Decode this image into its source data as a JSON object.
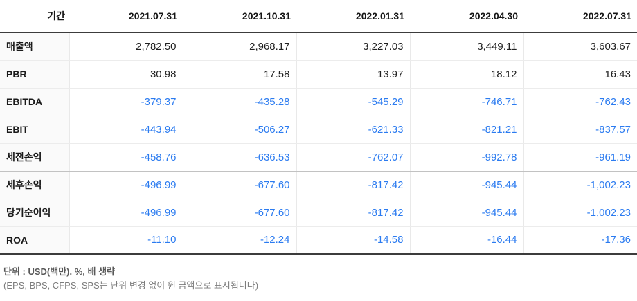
{
  "table": {
    "header": {
      "period_label": "기간",
      "dates": [
        "2021.07.31",
        "2021.10.31",
        "2022.01.31",
        "2022.04.30",
        "2022.07.31"
      ]
    },
    "rows": [
      {
        "label": "매출액",
        "values": [
          "2,782.50",
          "2,968.17",
          "3,227.03",
          "3,449.11",
          "3,603.67"
        ]
      },
      {
        "label": "PBR",
        "values": [
          "30.98",
          "17.58",
          "13.97",
          "18.12",
          "16.43"
        ]
      },
      {
        "label": "EBITDA",
        "values": [
          "-379.37",
          "-435.28",
          "-545.29",
          "-746.71",
          "-762.43"
        ]
      },
      {
        "label": "EBIT",
        "values": [
          "-443.94",
          "-506.27",
          "-621.33",
          "-821.21",
          "-837.57"
        ]
      },
      {
        "label": "세전손익",
        "values": [
          "-458.76",
          "-636.53",
          "-762.07",
          "-992.78",
          "-961.19"
        ]
      },
      {
        "label": "세후손익",
        "values": [
          "-496.99",
          "-677.60",
          "-817.42",
          "-945.44",
          "-1,002.23"
        ]
      },
      {
        "label": "당기순이익",
        "values": [
          "-496.99",
          "-677.60",
          "-817.42",
          "-945.44",
          "-1,002.23"
        ]
      },
      {
        "label": "ROA",
        "values": [
          "-11.10",
          "-12.24",
          "-14.58",
          "-16.44",
          "-17.36"
        ]
      }
    ]
  },
  "footer": {
    "line1": "단위 : USD(백만). %, 배 생략",
    "line2": "(EPS, BPS, CFPS, SPS는 단위 변경 없이 원 금액으로 표시됩니다)"
  },
  "colors": {
    "negative": "#2b7bf0",
    "header_line": "#3c3c3c",
    "row_line": "#ececec",
    "group_line": "#c2c2c2",
    "label_bg": "#fafafa",
    "footer_primary": "#595959",
    "footer_secondary": "#7d7d7d"
  }
}
